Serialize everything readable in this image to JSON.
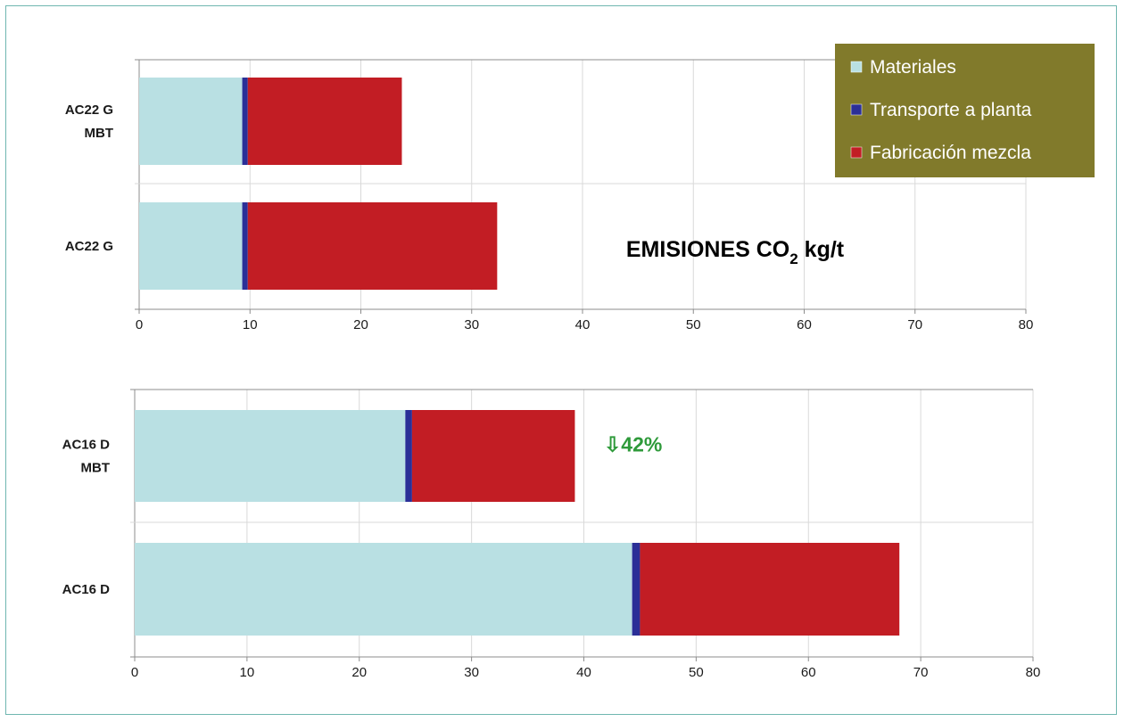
{
  "colors": {
    "materiales": "#b9e0e3",
    "transporte": "#2b2f97",
    "fabricacion": "#c21d24",
    "legend_bg": "#817a2b",
    "grid": "#d9d9d9",
    "axis": "#8c8c8c",
    "annotation": "#2e9a3a"
  },
  "chart_data": [
    {
      "type": "bar",
      "orientation": "horizontal",
      "stacked": true,
      "title": "EMISIONES CO",
      "title_subscript": "2",
      "title_suffix": " kg/t",
      "categories": [
        [
          "AC22 G",
          "MBT"
        ],
        [
          "AC22 G"
        ]
      ],
      "series": [
        {
          "name": "Materiales",
          "values": [
            9.3,
            9.3
          ]
        },
        {
          "name": "Transporte a planta",
          "values": [
            0.5,
            0.5
          ]
        },
        {
          "name": "Fabricación mezcla",
          "values": [
            13.9,
            22.5
          ]
        }
      ],
      "xlim": [
        0,
        80
      ],
      "xticks": [
        "0",
        "10",
        "20",
        "30",
        "40",
        "50",
        "60",
        "70",
        "80"
      ],
      "grid": true,
      "legend": {
        "placement": "top-right",
        "entries": [
          "Materiales",
          "Transporte a planta",
          "Fabricación mezcla"
        ]
      }
    },
    {
      "type": "bar",
      "orientation": "horizontal",
      "stacked": true,
      "categories": [
        [
          "AC16 D",
          "MBT"
        ],
        [
          "AC16 D"
        ]
      ],
      "series": [
        {
          "name": "Materiales",
          "values": [
            24.1,
            44.3
          ]
        },
        {
          "name": "Transporte a planta",
          "values": [
            0.6,
            0.7
          ]
        },
        {
          "name": "Fabricación mezcla",
          "values": [
            14.5,
            23.1
          ]
        }
      ],
      "xlim": [
        0,
        80
      ],
      "xticks": [
        "0",
        "10",
        "20",
        "30",
        "40",
        "50",
        "60",
        "70",
        "80"
      ],
      "grid": true,
      "annotation": {
        "text": "⇩42%",
        "category_index": 0
      }
    }
  ]
}
